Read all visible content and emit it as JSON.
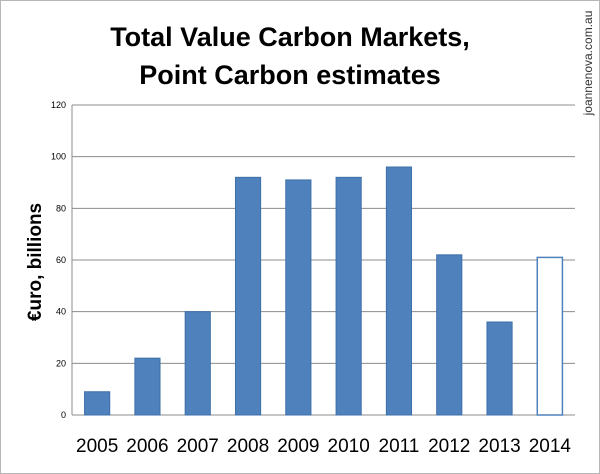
{
  "watermark": "joannenova.com.au",
  "chart_data": {
    "type": "bar",
    "title_lines": [
      "Total Value Carbon Markets,",
      "Point Carbon estimates"
    ],
    "xlabel": "",
    "ylabel": "€uro, billions",
    "categories": [
      "2005",
      "2006",
      "2007",
      "2008",
      "2009",
      "2010",
      "2011",
      "2012",
      "2013",
      "2014"
    ],
    "values": [
      9,
      22,
      40,
      92,
      91,
      92,
      96,
      62,
      36,
      61
    ],
    "estimated": [
      false,
      false,
      false,
      false,
      false,
      false,
      false,
      false,
      false,
      true
    ],
    "ylim": [
      0,
      120
    ],
    "yticks": [
      0,
      20,
      40,
      60,
      80,
      100,
      120
    ],
    "grid": true,
    "legend": "none",
    "colors": {
      "bar_fill": "#4f81bd",
      "bar_stroke": "#3d6fa8",
      "estimate_fill": "#ffffff",
      "estimate_stroke": "#4f81bd",
      "grid": "#8c8c8c",
      "axis": "#8c8c8c"
    }
  }
}
